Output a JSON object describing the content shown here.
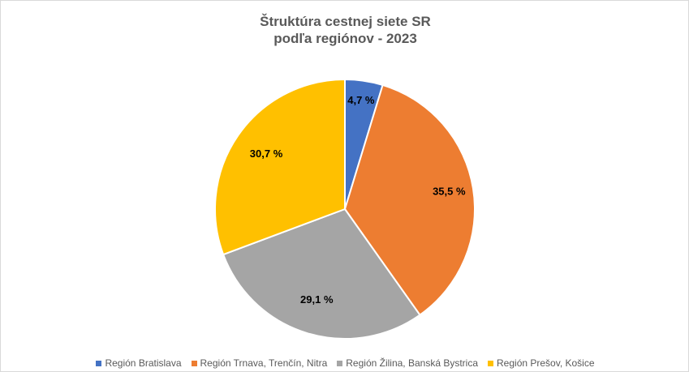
{
  "chart_data": {
    "type": "pie",
    "title_line1": "Štruktúra cestnej siete SR",
    "title_line2": "podľa regiónov - 2023",
    "categories": [
      "Región Bratislava",
      "Región Trnava, Trenčín, Nitra",
      "Región Žilina, Banská Bystrica",
      "Región Prešov, Košice"
    ],
    "values": [
      4.7,
      35.5,
      29.1,
      30.7
    ],
    "data_labels": [
      "4,7 %",
      "35,5 %",
      "29,1 %",
      "30,7 %"
    ],
    "colors": [
      "#4472C4",
      "#ED7D31",
      "#A5A5A5",
      "#FFC000"
    ],
    "legend_position": "bottom",
    "start_angle": "12 o'clock, clockwise"
  }
}
